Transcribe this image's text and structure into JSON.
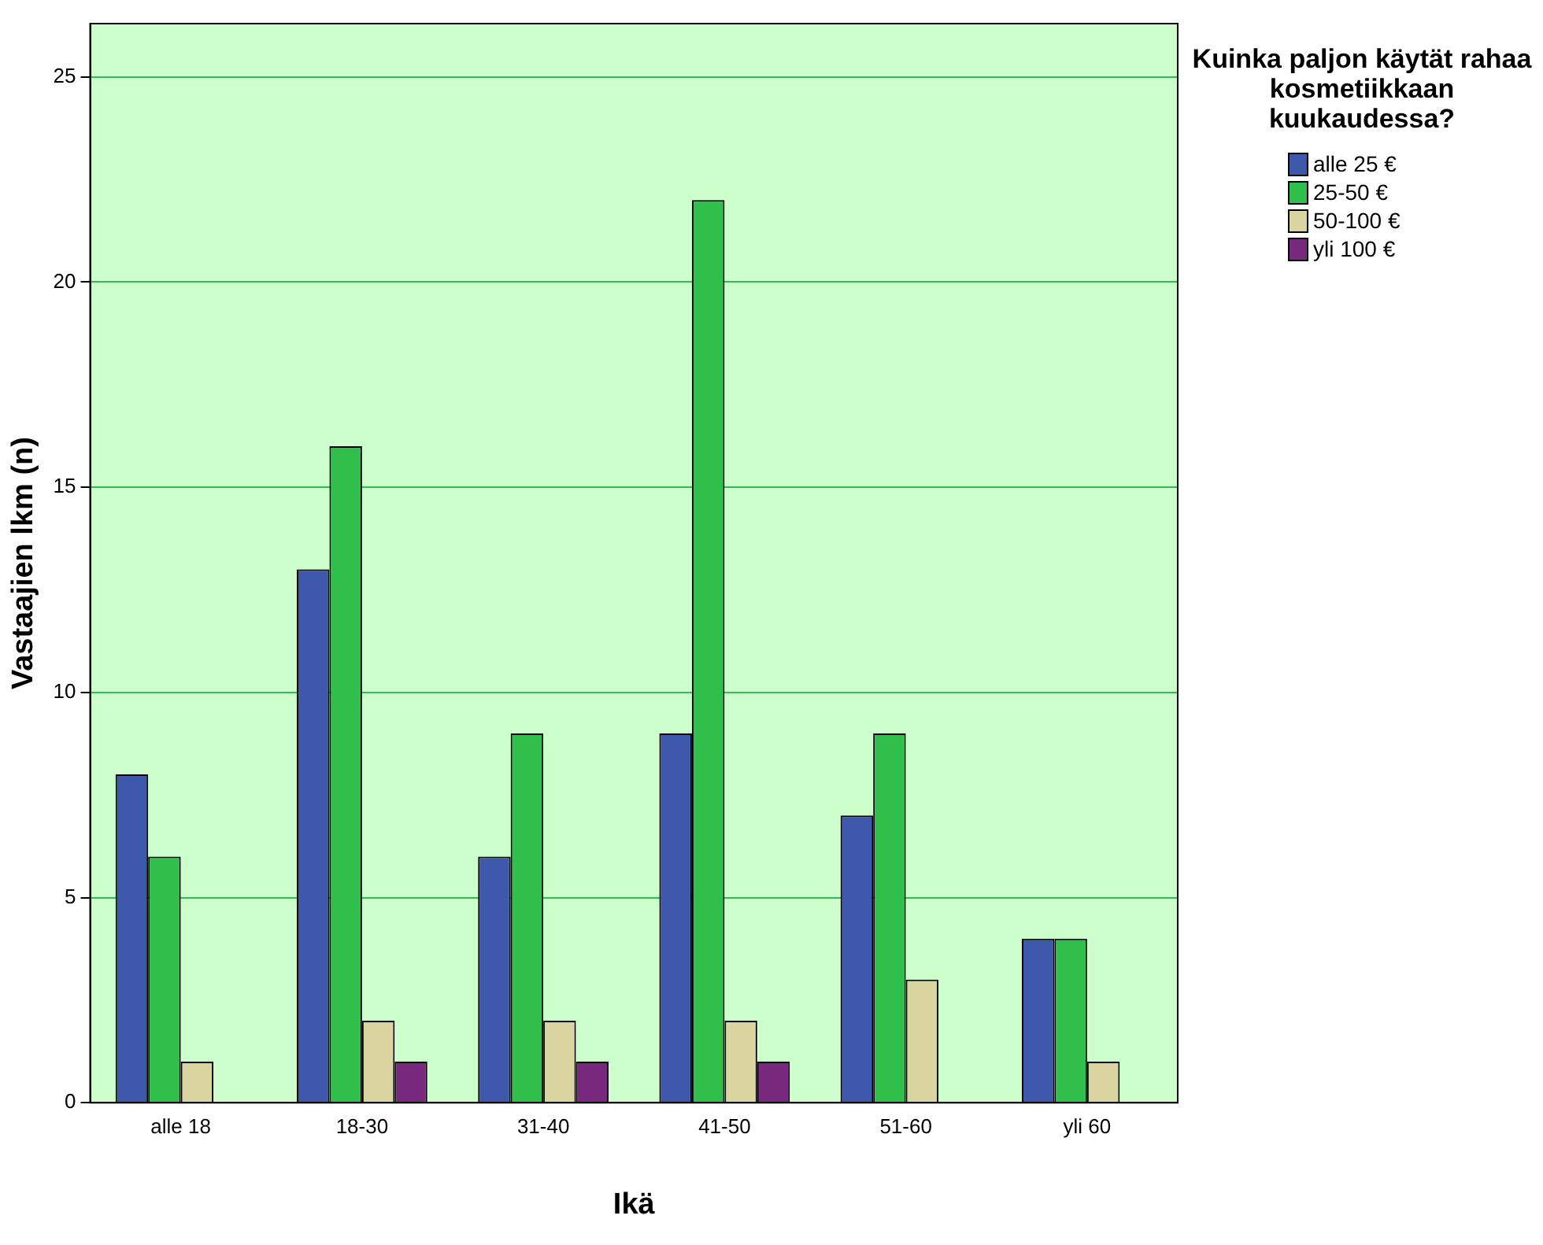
{
  "chart_data": {
    "type": "bar",
    "xlabel": "Ikä",
    "ylabel": "Vastaajien lkm (n)",
    "legend_title": "Kuinka paljon käytät rahaa kosmetiikkaan kuukaudessa?",
    "categories": [
      "alle 18",
      "18-30",
      "31-40",
      "41-50",
      "51-60",
      "yli 60"
    ],
    "series": [
      {
        "name": "alle 25 €",
        "color": "#3e58ac",
        "values": [
          8,
          13,
          6,
          9,
          7,
          4
        ]
      },
      {
        "name": "25-50 €",
        "color": "#2fbf4a",
        "values": [
          6,
          16,
          9,
          22,
          9,
          4
        ]
      },
      {
        "name": "50-100 €",
        "color": "#d9d4a0",
        "values": [
          1,
          2,
          2,
          2,
          3,
          1
        ]
      },
      {
        "name": "yli 100 €",
        "color": "#7a2a7e",
        "values": [
          0,
          1,
          1,
          1,
          0,
          0
        ]
      }
    ],
    "ylim": [
      0,
      26.3
    ],
    "yticks": [
      0,
      5,
      10,
      15,
      20,
      25
    ],
    "grid": "y",
    "legend": "top right"
  }
}
